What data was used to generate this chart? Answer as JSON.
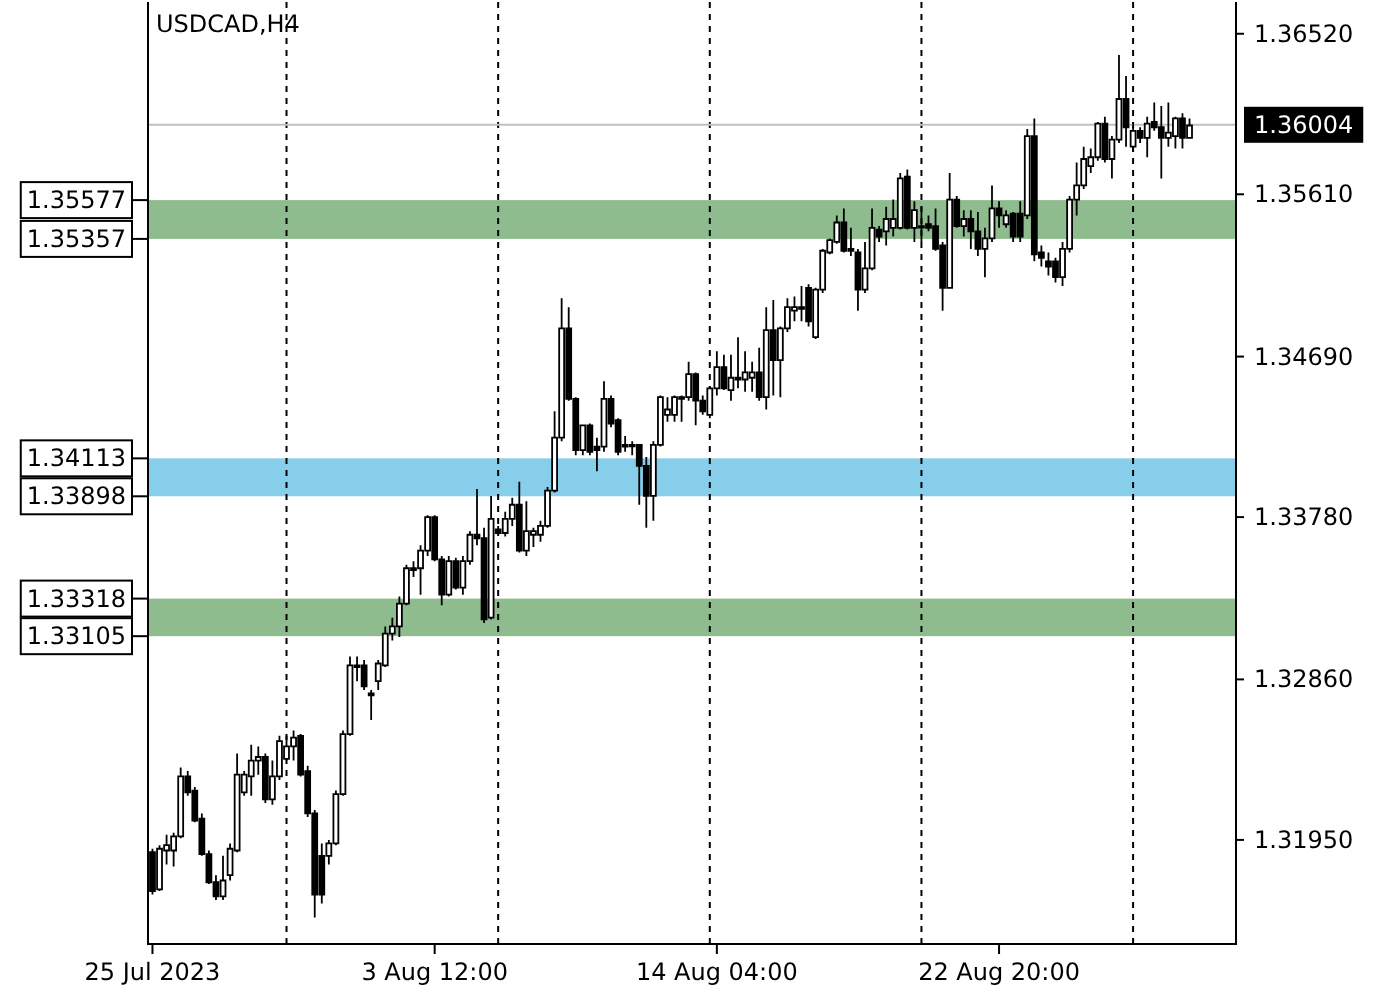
{
  "chart_data": {
    "type": "candlestick",
    "title": "USDCAD,H4",
    "categories": [
      "25 Jul 2023",
      null,
      null,
      null,
      null,
      null,
      null,
      null,
      null,
      null,
      null,
      null,
      null,
      null,
      null,
      null,
      null,
      null,
      null,
      null,
      null,
      null,
      null,
      null,
      null,
      null,
      null,
      null,
      null,
      null,
      null,
      null,
      null,
      null,
      null,
      null,
      null,
      null,
      null,
      null,
      "3 Aug 12:00",
      null,
      null,
      null,
      null,
      null,
      null,
      null,
      null,
      null,
      null,
      null,
      null,
      null,
      null,
      null,
      null,
      null,
      null,
      null,
      null,
      null,
      null,
      null,
      null,
      null,
      null,
      null,
      null,
      null,
      null,
      null,
      null,
      null,
      null,
      null,
      null,
      null,
      null,
      null,
      "14 Aug 04:00",
      null,
      null,
      null,
      null,
      null,
      null,
      null,
      null,
      null,
      null,
      null,
      null,
      null,
      null,
      null,
      null,
      null,
      null,
      null,
      null,
      null,
      null,
      null,
      null,
      null,
      null,
      null,
      null,
      null,
      null,
      null,
      null,
      null,
      null,
      null,
      null,
      null,
      null,
      null,
      "22 Aug 20:00",
      null,
      null,
      null,
      null,
      null,
      null,
      null,
      null,
      null,
      null,
      null,
      null,
      null,
      null,
      null,
      null,
      null,
      null,
      null,
      null,
      null,
      null,
      null,
      null,
      null,
      null,
      null
    ],
    "ohlc": [
      [
        1.3188,
        1.319,
        1.3164,
        1.3166
      ],
      [
        1.3167,
        1.3192,
        1.3166,
        1.319
      ],
      [
        1.3189,
        1.3198,
        1.3181,
        1.3192
      ],
      [
        1.3189,
        1.3199,
        1.318,
        1.3197
      ],
      [
        1.3197,
        1.3236,
        1.3196,
        1.3231
      ],
      [
        1.3231,
        1.3234,
        1.322,
        1.3222
      ],
      [
        1.3223,
        1.3225,
        1.3205,
        1.3206
      ],
      [
        1.3207,
        1.321,
        1.3186,
        1.3187
      ],
      [
        1.3187,
        1.3189,
        1.317,
        1.3171
      ],
      [
        1.3171,
        1.3175,
        1.3161,
        1.3163
      ],
      [
        1.3163,
        1.3186,
        1.3161,
        1.3172
      ],
      [
        1.3175,
        1.3193,
        1.3172,
        1.319
      ],
      [
        1.3189,
        1.3244,
        1.3188,
        1.3232
      ],
      [
        1.3222,
        1.3234,
        1.322,
        1.3232
      ],
      [
        1.3231,
        1.3249,
        1.322,
        1.324
      ],
      [
        1.324,
        1.3248,
        1.3232,
        1.3242
      ],
      [
        1.3242,
        1.3244,
        1.3216,
        1.3218
      ],
      [
        1.3218,
        1.324,
        1.3215,
        1.3231
      ],
      [
        1.3231,
        1.3254,
        1.3229,
        1.3251
      ],
      [
        1.3241,
        1.3254,
        1.324,
        1.3248
      ],
      [
        1.3248,
        1.3257,
        1.324,
        1.3253
      ],
      [
        1.3254,
        1.3255,
        1.3231,
        1.3232
      ],
      [
        1.3234,
        1.3237,
        1.3208,
        1.321
      ],
      [
        1.321,
        1.3212,
        1.3151,
        1.3164
      ],
      [
        1.3186,
        1.3193,
        1.3159,
        1.3164
      ],
      [
        1.3186,
        1.3195,
        1.3181,
        1.3193
      ],
      [
        1.3193,
        1.3223,
        1.3192,
        1.3221
      ],
      [
        1.3221,
        1.3257,
        1.322,
        1.3255
      ],
      [
        1.3255,
        1.3299,
        1.3254,
        1.3294
      ],
      [
        1.3293,
        1.3299,
        1.3285,
        1.3294
      ],
      [
        1.3294,
        1.3297,
        1.328,
        1.3282
      ],
      [
        1.3278,
        1.328,
        1.3263,
        1.3277
      ],
      [
        1.3285,
        1.3297,
        1.328,
        1.3295
      ],
      [
        1.3294,
        1.3316,
        1.3293,
        1.3312
      ],
      [
        1.3312,
        1.3321,
        1.3308,
        1.3316
      ],
      [
        1.3316,
        1.3333,
        1.331,
        1.3329
      ],
      [
        1.3329,
        1.3351,
        1.3328,
        1.3349
      ],
      [
        1.3349,
        1.3353,
        1.3344,
        1.3348
      ],
      [
        1.3349,
        1.3362,
        1.3334,
        1.3359
      ],
      [
        1.3359,
        1.3379,
        1.3356,
        1.3378
      ],
      [
        1.3378,
        1.3379,
        1.3353,
        1.3354
      ],
      [
        1.3354,
        1.3356,
        1.3328,
        1.3334
      ],
      [
        1.3334,
        1.3356,
        1.3333,
        1.3353
      ],
      [
        1.3353,
        1.3355,
        1.3337,
        1.3338
      ],
      [
        1.3338,
        1.3356,
        1.3334,
        1.3353
      ],
      [
        1.3353,
        1.337,
        1.3351,
        1.3368
      ],
      [
        1.3368,
        1.3394,
        1.3362,
        1.3366
      ],
      [
        1.3366,
        1.3372,
        1.3318,
        1.332
      ],
      [
        1.3321,
        1.339,
        1.332,
        1.3377
      ],
      [
        1.3371,
        1.3373,
        1.3368,
        1.3369
      ],
      [
        1.3369,
        1.3381,
        1.3367,
        1.3377
      ],
      [
        1.3377,
        1.3389,
        1.3373,
        1.3385
      ],
      [
        1.3385,
        1.3398,
        1.3358,
        1.3359
      ],
      [
        1.3359,
        1.3387,
        1.3356,
        1.337
      ],
      [
        1.3368,
        1.3372,
        1.3361,
        1.337
      ],
      [
        1.3368,
        1.3376,
        1.3364,
        1.3373
      ],
      [
        1.3373,
        1.3395,
        1.3372,
        1.3393
      ],
      [
        1.3393,
        1.3438,
        1.3392,
        1.3423
      ],
      [
        1.3423,
        1.3502,
        1.3421,
        1.3485
      ],
      [
        1.3485,
        1.3497,
        1.3444,
        1.3445
      ],
      [
        1.3445,
        1.3446,
        1.3413,
        1.3416
      ],
      [
        1.3416,
        1.343,
        1.3413,
        1.343
      ],
      [
        1.343,
        1.3431,
        1.3413,
        1.3415
      ],
      [
        1.3418,
        1.3423,
        1.3404,
        1.3416
      ],
      [
        1.3418,
        1.3455,
        1.3415,
        1.3445
      ],
      [
        1.3445,
        1.3447,
        1.3429,
        1.3431
      ],
      [
        1.3433,
        1.3434,
        1.3413,
        1.3415
      ],
      [
        1.3418,
        1.3424,
        1.3415,
        1.3419
      ],
      [
        1.3419,
        1.3421,
        1.3413,
        1.3419
      ],
      [
        1.3419,
        1.3419,
        1.3385,
        1.3407
      ],
      [
        1.3407,
        1.3412,
        1.3372,
        1.339
      ],
      [
        1.339,
        1.3421,
        1.3376,
        1.3419
      ],
      [
        1.3419,
        1.3447,
        1.3418,
        1.3446
      ],
      [
        1.3436,
        1.3446,
        1.3432,
        1.3439
      ],
      [
        1.3436,
        1.3447,
        1.3432,
        1.3446
      ],
      [
        1.3446,
        1.3447,
        1.3432,
        1.3446
      ],
      [
        1.3446,
        1.3466,
        1.3444,
        1.3459
      ],
      [
        1.3459,
        1.346,
        1.343,
        1.3444
      ],
      [
        1.3444,
        1.3447,
        1.3436,
        1.3438
      ],
      [
        1.3436,
        1.3452,
        1.3434,
        1.3451
      ],
      [
        1.3451,
        1.3472,
        1.3447,
        1.3463
      ],
      [
        1.3463,
        1.347,
        1.345,
        1.3451
      ],
      [
        1.345,
        1.347,
        1.3444,
        1.3457
      ],
      [
        1.3457,
        1.348,
        1.3451,
        1.3456
      ],
      [
        1.3456,
        1.3472,
        1.3449,
        1.346
      ],
      [
        1.3457,
        1.3466,
        1.3449,
        1.346
      ],
      [
        1.346,
        1.3474,
        1.3444,
        1.3446
      ],
      [
        1.3446,
        1.3497,
        1.3439,
        1.3484
      ],
      [
        1.3484,
        1.3501,
        1.3447,
        1.3467
      ],
      [
        1.3467,
        1.3486,
        1.3446,
        1.3485
      ],
      [
        1.3485,
        1.3502,
        1.3483,
        1.3497
      ],
      [
        1.3495,
        1.3503,
        1.3489,
        1.3497
      ],
      [
        1.3497,
        1.3509,
        1.3489,
        1.3497
      ],
      [
        1.3508,
        1.351,
        1.3486,
        1.3489
      ],
      [
        1.348,
        1.3508,
        1.3479,
        1.3507
      ],
      [
        1.3507,
        1.353,
        1.3505,
        1.3529
      ],
      [
        1.3528,
        1.3536,
        1.3527,
        1.3535
      ],
      [
        1.3534,
        1.3549,
        1.3533,
        1.3545
      ],
      [
        1.3545,
        1.3553,
        1.3528,
        1.3529
      ],
      [
        1.353,
        1.3542,
        1.3526,
        1.3529
      ],
      [
        1.3528,
        1.353,
        1.3495,
        1.3507
      ],
      [
        1.3507,
        1.3534,
        1.3505,
        1.3519
      ],
      [
        1.3519,
        1.3553,
        1.3518,
        1.3542
      ],
      [
        1.3541,
        1.3543,
        1.3534,
        1.3537
      ],
      [
        1.354,
        1.3554,
        1.3532,
        1.3547
      ],
      [
        1.3542,
        1.3558,
        1.3537,
        1.3547
      ],
      [
        1.3542,
        1.3573,
        1.3541,
        1.357
      ],
      [
        1.3571,
        1.3575,
        1.3541,
        1.3542
      ],
      [
        1.3542,
        1.3557,
        1.3534,
        1.3552
      ],
      [
        1.3543,
        1.3554,
        1.3534,
        1.3543
      ],
      [
        1.3544,
        1.3549,
        1.354,
        1.3542
      ],
      [
        1.3543,
        1.3553,
        1.3529,
        1.353
      ],
      [
        1.3532,
        1.3534,
        1.3495,
        1.3508
      ],
      [
        1.3508,
        1.3573,
        1.3508,
        1.3558
      ],
      [
        1.3558,
        1.356,
        1.3542,
        1.3543
      ],
      [
        1.3543,
        1.3552,
        1.3537,
        1.3547
      ],
      [
        1.3547,
        1.3552,
        1.353,
        1.354
      ],
      [
        1.354,
        1.3551,
        1.3526,
        1.353
      ],
      [
        1.353,
        1.3542,
        1.3514,
        1.3536
      ],
      [
        1.3536,
        1.3566,
        1.3534,
        1.3553
      ],
      [
        1.3553,
        1.3557,
        1.3542,
        1.3549
      ],
      [
        1.3544,
        1.3552,
        1.3542,
        1.3549
      ],
      [
        1.355,
        1.3551,
        1.3534,
        1.3537
      ],
      [
        1.355,
        1.3557,
        1.3534,
        1.3537
      ],
      [
        1.3549,
        1.3598,
        1.3547,
        1.3594
      ],
      [
        1.3594,
        1.3604,
        1.3523,
        1.3527
      ],
      [
        1.3528,
        1.3532,
        1.352,
        1.3525
      ],
      [
        1.3523,
        1.3528,
        1.3515,
        1.352
      ],
      [
        1.3523,
        1.3525,
        1.3511,
        1.3514
      ],
      [
        1.3514,
        1.3534,
        1.3509,
        1.353
      ],
      [
        1.353,
        1.356,
        1.3528,
        1.3558
      ],
      [
        1.3558,
        1.3579,
        1.3549,
        1.3566
      ],
      [
        1.3566,
        1.3588,
        1.3564,
        1.3581
      ],
      [
        1.3577,
        1.3587,
        1.3573,
        1.3582
      ],
      [
        1.3582,
        1.3602,
        1.358,
        1.3601
      ],
      [
        1.3601,
        1.3605,
        1.3579,
        1.3581
      ],
      [
        1.3581,
        1.3594,
        1.357,
        1.3592
      ],
      [
        1.3592,
        1.364,
        1.359,
        1.3615
      ],
      [
        1.3615,
        1.3628,
        1.3588,
        1.3599
      ],
      [
        1.3588,
        1.3602,
        1.3585,
        1.3597
      ],
      [
        1.3597,
        1.3599,
        1.359,
        1.3593
      ],
      [
        1.3593,
        1.3605,
        1.3582,
        1.3601
      ],
      [
        1.3602,
        1.3613,
        1.3597,
        1.3599
      ],
      [
        1.3599,
        1.3611,
        1.357,
        1.3593
      ],
      [
        1.3593,
        1.3613,
        1.3588,
        1.3596
      ],
      [
        1.3594,
        1.3605,
        1.3587,
        1.3604
      ],
      [
        1.3604,
        1.3607,
        1.3587,
        1.3593
      ],
      [
        1.3593,
        1.3604,
        1.3593,
        1.36
      ]
    ],
    "ylim": [
      1.3136,
      1.367
    ],
    "yticks": [
      {
        "value": 1.3652,
        "label": "1.36520"
      },
      {
        "value": 1.3561,
        "label": "1.35610"
      },
      {
        "value": 1.3469,
        "label": "1.34690"
      },
      {
        "value": 1.3378,
        "label": "1.33780"
      },
      {
        "value": 1.3286,
        "label": "1.32860"
      },
      {
        "value": 1.3195,
        "label": "1.31950"
      }
    ],
    "bands": [
      {
        "axis": "y",
        "from": 1.35357,
        "to": 1.35577,
        "color": "#8fbc8f"
      },
      {
        "axis": "y",
        "from": 1.33105,
        "to": 1.33318,
        "color": "#8fbc8f"
      },
      {
        "axis": "y",
        "from": 1.33898,
        "to": 1.34113,
        "color": "#87ceeb"
      }
    ],
    "ref_lines": [
      {
        "axis": "y",
        "value": 1.36004,
        "label": "1.36004",
        "color": "#c0c0c0"
      }
    ],
    "annotations": [
      "1.35577",
      "1.35357",
      "1.33318",
      "1.33105",
      "1.34113",
      "1.33898"
    ]
  }
}
